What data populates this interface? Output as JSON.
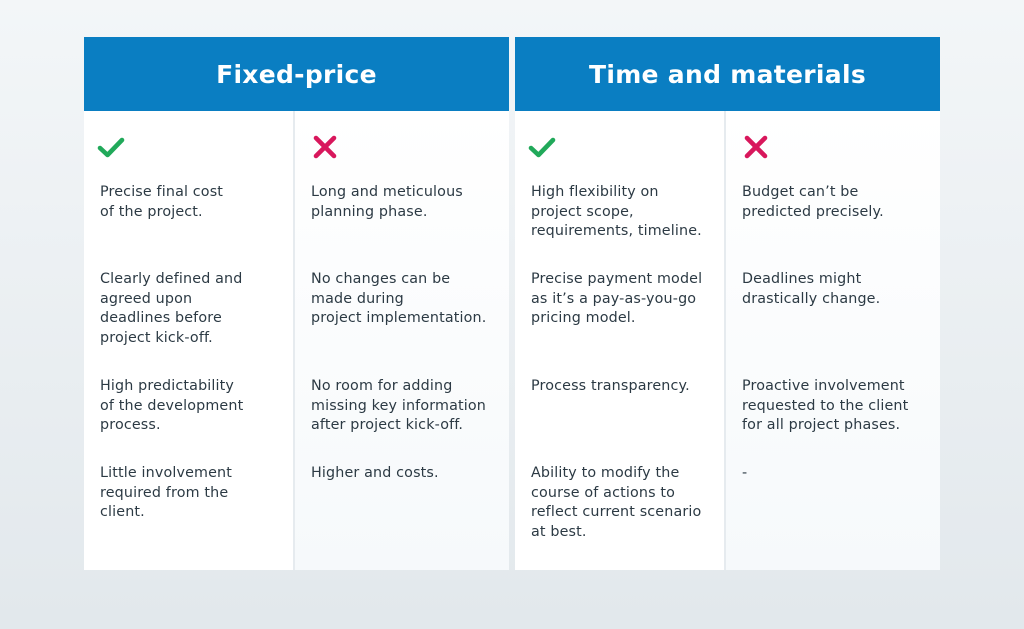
{
  "colors": {
    "header": "#0a7ec2",
    "check": "#21a95a",
    "cross": "#d8175c",
    "text": "#2c3a44"
  },
  "fixed_price": {
    "title": "Fixed-price",
    "pros": {
      "icon": "check-icon",
      "items": [
        "Precise final cost\nof the project.",
        "Clearly defined and\nagreed upon\ndeadlines before\nproject kick-off.",
        "High predictability\nof the development\nprocess.",
        "Little involvement\nrequired from the\nclient."
      ]
    },
    "cons": {
      "icon": "cross-icon",
      "items": [
        "Long and meticulous\nplanning phase.",
        "No changes can be\nmade during\nproject implementation.",
        "No room for adding\nmissing key information\nafter project kick-off.",
        "Higher and costs."
      ]
    }
  },
  "time_materials": {
    "title": "Time and materials",
    "pros": {
      "icon": "check-icon",
      "items": [
        "High flexibility on\nproject scope,\nrequirements, timeline.",
        "Precise payment model\nas it’s a pay-as-you-go\npricing model.",
        "Process transparency.",
        "Ability to modify the\ncourse of actions to\nreflect current scenario\nat best."
      ]
    },
    "cons": {
      "icon": "cross-icon",
      "items": [
        "Budget can’t be\npredicted precisely.",
        "Deadlines might\ndrastically change.",
        "Proactive involvement\nrequested to the client\nfor all project phases.",
        "-"
      ]
    }
  }
}
